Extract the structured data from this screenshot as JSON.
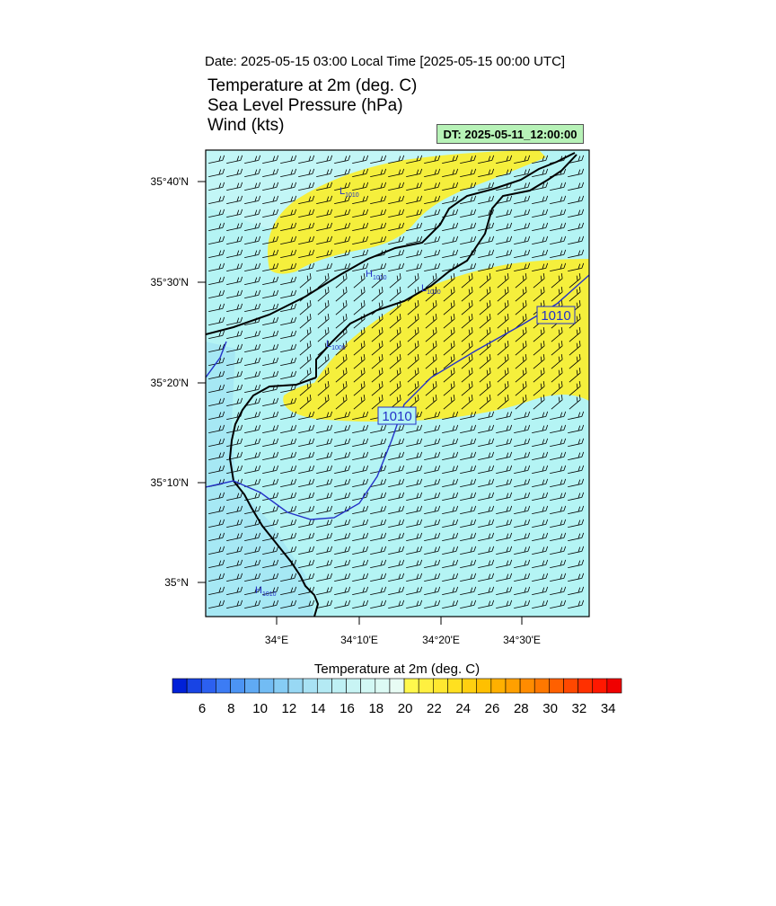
{
  "header": {
    "date_line": "Date: 2025-05-15  03:00 Local Time [2025-05-15  00:00 UTC]",
    "titles": [
      "Temperature at 2m   (deg. C)",
      "Sea Level Pressure   (hPa)",
      "Wind   (kts)"
    ],
    "dt_badge": "DT: 2025-05-11_12:00:00"
  },
  "map": {
    "lat_labels": [
      "35°40'N",
      "35°30'N",
      "35°20'N",
      "35°10'N",
      "35°N"
    ],
    "lon_labels": [
      "34°E",
      "34°10'E",
      "34°20'E",
      "34°30'E"
    ],
    "isobar_labels": [
      "1010",
      "1010"
    ],
    "pressure_markers": [
      {
        "symbol": "L",
        "value": "1010"
      },
      {
        "symbol": "H",
        "value": "1010"
      },
      {
        "symbol": "L",
        "value": "1010"
      },
      {
        "symbol": "L",
        "value": "1008"
      },
      {
        "symbol": "H",
        "value": "1010"
      }
    ],
    "colors": {
      "warm_fill": "#f5ef3c",
      "cool_fill": "#b4f4f4",
      "cooler_fill": "#a6e8f4",
      "coast": "#000000",
      "isobar": "#2432c8"
    }
  },
  "colorbar": {
    "title": "Temperature at 2m  (deg. C)",
    "labels": [
      "6",
      "8",
      "10",
      "12",
      "14",
      "16",
      "18",
      "20",
      "22",
      "24",
      "26",
      "28",
      "30",
      "32",
      "34"
    ],
    "colors": [
      "#0020d8",
      "#1844e4",
      "#2c60f0",
      "#3c7cf4",
      "#4c94f4",
      "#60aaf4",
      "#72bcf4",
      "#86ccf4",
      "#98d8f4",
      "#a8e2f4",
      "#b4eaf4",
      "#bef0f4",
      "#c8f4f4",
      "#d2f8f4",
      "#dcfaf4",
      "#e8fcf4",
      "#fff84c",
      "#fff040",
      "#ffe830",
      "#ffe020",
      "#ffd010",
      "#ffc000",
      "#ffb000",
      "#ffa000",
      "#ff8c00",
      "#ff7800",
      "#ff6000",
      "#ff4800",
      "#ff3000",
      "#ff1800",
      "#f00000"
    ]
  }
}
